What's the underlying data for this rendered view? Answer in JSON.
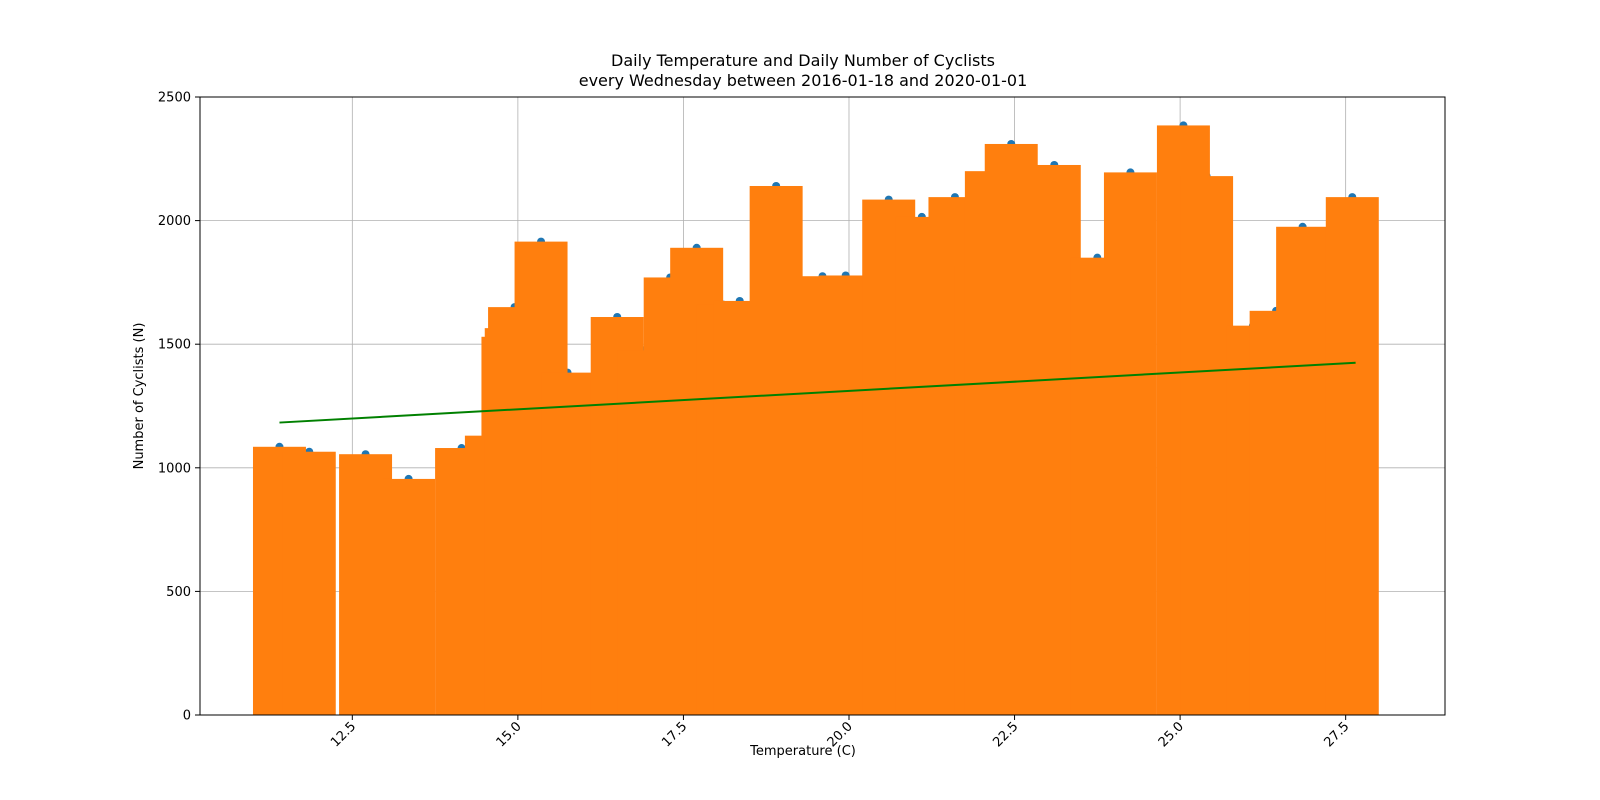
{
  "chart_data": {
    "type": "bar",
    "title": "Daily Temperature and Daily Number of Cyclists",
    "subtitle": "every Wednesday between 2016-01-18 and 2020-01-01",
    "xlabel": "Temperature (C)",
    "ylabel": "Number of Cyclists (N)",
    "xlim": [
      10.2,
      29.0
    ],
    "ylim": [
      0,
      2500
    ],
    "xticks": [
      12.5,
      15.0,
      17.5,
      20.0,
      22.5,
      25.0,
      27.5
    ],
    "xtick_labels": [
      "12.5",
      "15.0",
      "17.5",
      "20.0",
      "22.5",
      "25.0",
      "27.5"
    ],
    "yticks": [
      0,
      500,
      1000,
      1500,
      2000,
      2500
    ],
    "ytick_labels": [
      "0",
      "500",
      "1000",
      "1500",
      "2000",
      "2500"
    ],
    "grid": true,
    "bar_color": "#ff7f0e",
    "point_color": "#1f77b4",
    "trend_color": "#008000",
    "bar_width": 0.8,
    "points": [
      {
        "x": 11.4,
        "y": 1085
      },
      {
        "x": 11.85,
        "y": 1065
      },
      {
        "x": 12.7,
        "y": 1055
      },
      {
        "x": 13.35,
        "y": 955
      },
      {
        "x": 14.15,
        "y": 1080
      },
      {
        "x": 14.6,
        "y": 1130
      },
      {
        "x": 14.85,
        "y": 1530
      },
      {
        "x": 14.9,
        "y": 1565
      },
      {
        "x": 14.95,
        "y": 1650
      },
      {
        "x": 15.35,
        "y": 1915
      },
      {
        "x": 15.75,
        "y": 1385
      },
      {
        "x": 16.5,
        "y": 1610
      },
      {
        "x": 16.9,
        "y": 1475
      },
      {
        "x": 17.3,
        "y": 1770
      },
      {
        "x": 17.7,
        "y": 1890
      },
      {
        "x": 18.1,
        "y": 1660
      },
      {
        "x": 18.35,
        "y": 1675
      },
      {
        "x": 18.9,
        "y": 2140
      },
      {
        "x": 19.6,
        "y": 1775
      },
      {
        "x": 19.95,
        "y": 1778
      },
      {
        "x": 20.6,
        "y": 2085
      },
      {
        "x": 21.1,
        "y": 2015
      },
      {
        "x": 21.6,
        "y": 2095
      },
      {
        "x": 22.0,
        "y": 1815
      },
      {
        "x": 22.15,
        "y": 2200
      },
      {
        "x": 22.45,
        "y": 2310
      },
      {
        "x": 23.1,
        "y": 2225
      },
      {
        "x": 23.75,
        "y": 1850
      },
      {
        "x": 24.25,
        "y": 2195
      },
      {
        "x": 25.05,
        "y": 2385
      },
      {
        "x": 25.4,
        "y": 2180
      },
      {
        "x": 26.1,
        "y": 1575
      },
      {
        "x": 26.45,
        "y": 1635
      },
      {
        "x": 26.85,
        "y": 1975
      },
      {
        "x": 27.6,
        "y": 2095
      }
    ],
    "trend_line": {
      "x": [
        11.4,
        27.65
      ],
      "y": [
        1183,
        1425
      ]
    }
  }
}
